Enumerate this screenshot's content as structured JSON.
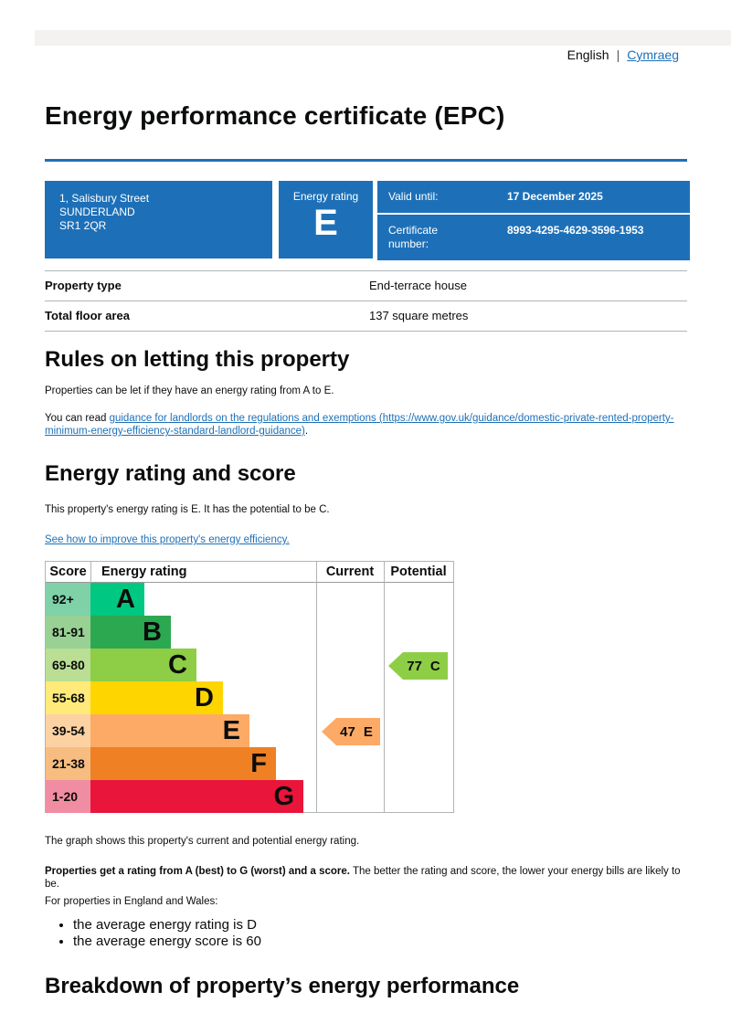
{
  "colors": {
    "govuk_blue": "#1d70b8",
    "link_blue": "#1d70b8",
    "topbar_gray": "#f3f2f1",
    "border_gray": "#b1b4b6"
  },
  "language_bar": {
    "current": "English",
    "divider": "|",
    "link": "Cymraeg"
  },
  "page_title": "Energy performance certificate (EPC)",
  "summary": {
    "address_line1": "1, Salisbury Street",
    "address_line2": "SUNDERLAND",
    "address_line3": "SR1 2QR",
    "energy_rating_label": "Energy rating",
    "energy_rating_value": "E",
    "valid_until_label": "Valid until:",
    "valid_until_value": "17 December 2025",
    "certificate_number_label": "Certificate number:",
    "certificate_number_value": "8993-4295-4629-3596-1953"
  },
  "property_details": {
    "rows": [
      {
        "label": "Property type",
        "value": "End-terrace house"
      },
      {
        "label": "Total floor area",
        "value": "137 square metres"
      }
    ]
  },
  "rules": {
    "heading": "Rules on letting this property",
    "paragraph1": "Properties can be let if they have an energy rating from A to E.",
    "paragraph2_prefix": "You can read ",
    "paragraph2_link": "guidance for landlords on the regulations and exemptions (https://www.gov.uk/guidance/domestic-private-rented-property-minimum-energy-efficiency-standard-landlord-guidance)",
    "paragraph2_suffix": "."
  },
  "rating": {
    "heading": "Energy rating and score",
    "intro": "This property's energy rating is E. It has the potential to be C.",
    "improve_link": "See how to improve this property's energy efficiency."
  },
  "chart_data": {
    "type": "bar",
    "title": "Energy rating and score",
    "columns": [
      "Score",
      "Energy rating",
      "Current",
      "Potential"
    ],
    "bands": [
      {
        "score": "92+",
        "letter": "A",
        "color": "#00c781",
        "tint": "#7fd1a8"
      },
      {
        "score": "81-91",
        "letter": "B",
        "color": "#2ca851",
        "tint": "#98d193"
      },
      {
        "score": "69-80",
        "letter": "C",
        "color": "#8dce46",
        "tint": "#bade94"
      },
      {
        "score": "55-68",
        "letter": "D",
        "color": "#ffd500",
        "tint": "#ffea7a"
      },
      {
        "score": "39-54",
        "letter": "E",
        "color": "#fcaa65",
        "tint": "#fdd2a3"
      },
      {
        "score": "21-38",
        "letter": "F",
        "color": "#ef8023",
        "tint": "#f7bc80"
      },
      {
        "score": "1-20",
        "letter": "G",
        "color": "#e9153b",
        "tint": "#f18da2"
      }
    ],
    "current": {
      "score": "47",
      "letter": "E",
      "color": "#fcaa65"
    },
    "potential": {
      "score": "77",
      "letter": "C",
      "color": "#8dce46"
    }
  },
  "after_chart": {
    "caption": "The graph shows this property's current and potential energy rating.",
    "note_bold": "Properties get a rating from A (best) to G (worst) and a score.",
    "note_rest": " The better the rating and score, the lower your energy bills are likely to be.",
    "region_intro": "For properties in England and Wales:",
    "bullet1": "the average energy rating is D",
    "bullet2": "the average energy score is 60"
  },
  "breakdown": {
    "heading": "Breakdown of property’s energy performance"
  }
}
